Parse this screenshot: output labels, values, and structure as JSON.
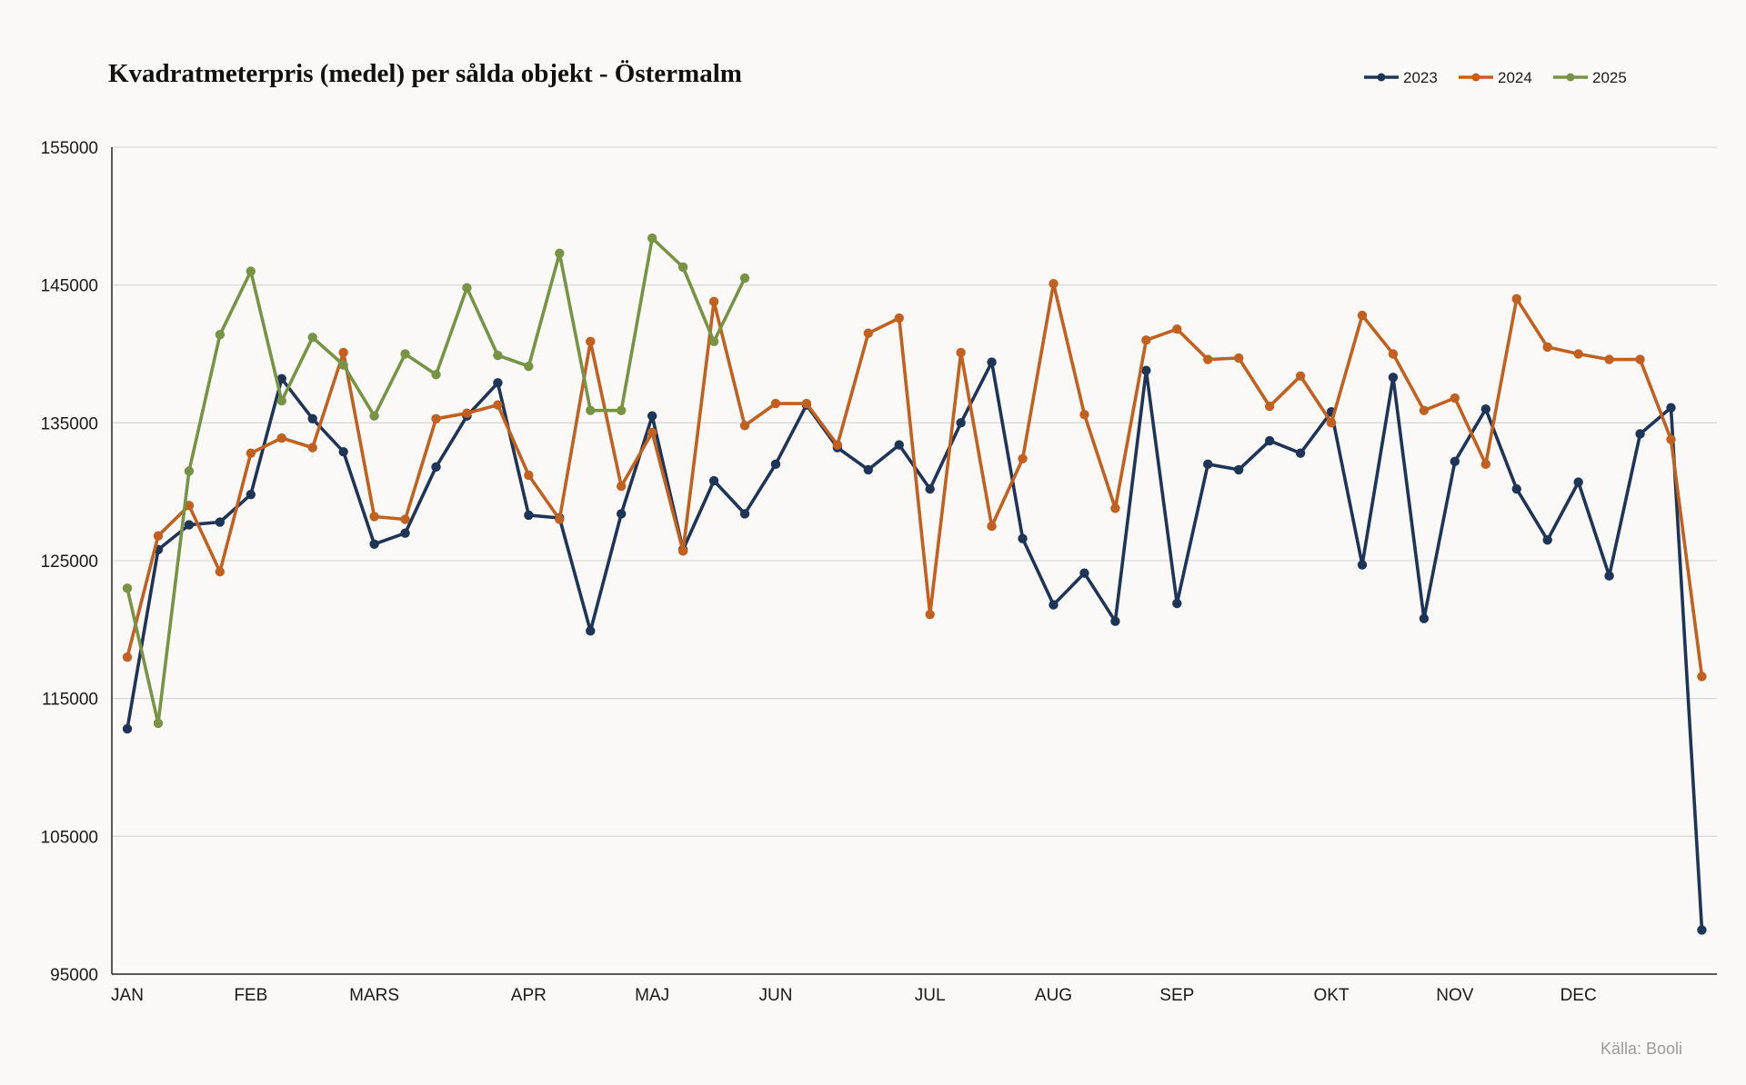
{
  "chart_data": {
    "type": "line",
    "title": "Kvadratmeterpris (medel) per sålda objekt - Östermalm",
    "source": "Källa: Booli",
    "xlabel": "",
    "ylabel": "",
    "ylim": [
      95000,
      155000
    ],
    "yticks": [
      "155000",
      "145000",
      "135000",
      "125000",
      "115000",
      "105000",
      "95000"
    ],
    "ytick_values": [
      155000,
      145000,
      135000,
      125000,
      115000,
      105000,
      95000
    ],
    "month_labels": [
      {
        "label": "JAN",
        "week": 1
      },
      {
        "label": "FEB",
        "week": 5
      },
      {
        "label": "MARS",
        "week": 9
      },
      {
        "label": "APR",
        "week": 14
      },
      {
        "label": "MAJ",
        "week": 18
      },
      {
        "label": "JUN",
        "week": 22
      },
      {
        "label": "JUL",
        "week": 27
      },
      {
        "label": "AUG",
        "week": 31
      },
      {
        "label": "SEP",
        "week": 35
      },
      {
        "label": "OKT",
        "week": 40
      },
      {
        "label": "NOV",
        "week": 44
      },
      {
        "label": "DEC",
        "week": 48
      }
    ],
    "legend_position": "top-right",
    "grid": true,
    "series": [
      {
        "name": "2023",
        "color": "#1e3557",
        "values": [
          112800,
          125800,
          127600,
          127800,
          129800,
          138200,
          135300,
          132900,
          126200,
          127000,
          131800,
          135500,
          137900,
          128300,
          128100,
          119900,
          128400,
          135500,
          125800,
          130800,
          128400,
          132000,
          136300,
          133200,
          131600,
          133400,
          130200,
          135000,
          139400,
          126600,
          121800,
          124100,
          120600,
          138800,
          121900,
          132000,
          131600,
          133700,
          132800,
          135800,
          124700,
          138300,
          120800,
          132200,
          136000,
          130200,
          126500,
          130700,
          123900,
          134200,
          136100,
          98200
        ]
      },
      {
        "name": "2024",
        "color": "#c1601f",
        "values": [
          118000,
          126800,
          129000,
          124200,
          132800,
          133900,
          133200,
          140100,
          128200,
          128000,
          135300,
          135700,
          136300,
          131200,
          128000,
          140900,
          130400,
          134300,
          125700,
          143800,
          134800,
          136400,
          136400,
          133400,
          141500,
          142600,
          121100,
          140100,
          127500,
          132400,
          145100,
          135600,
          128800,
          141000,
          141800,
          139600,
          139700,
          136200,
          138400,
          135000,
          142800,
          140000,
          135900,
          136800,
          132000,
          144000,
          140500,
          140000,
          139600,
          139600,
          133800,
          116600
        ]
      },
      {
        "name": "2025",
        "color": "#789343",
        "values": [
          123000,
          113200,
          131500,
          141400,
          146000,
          136600,
          141200,
          139200,
          135500,
          140000,
          138500,
          144800,
          139900,
          139100,
          147300,
          135900,
          135900,
          148400,
          146300,
          140900,
          145500
        ]
      }
    ]
  }
}
